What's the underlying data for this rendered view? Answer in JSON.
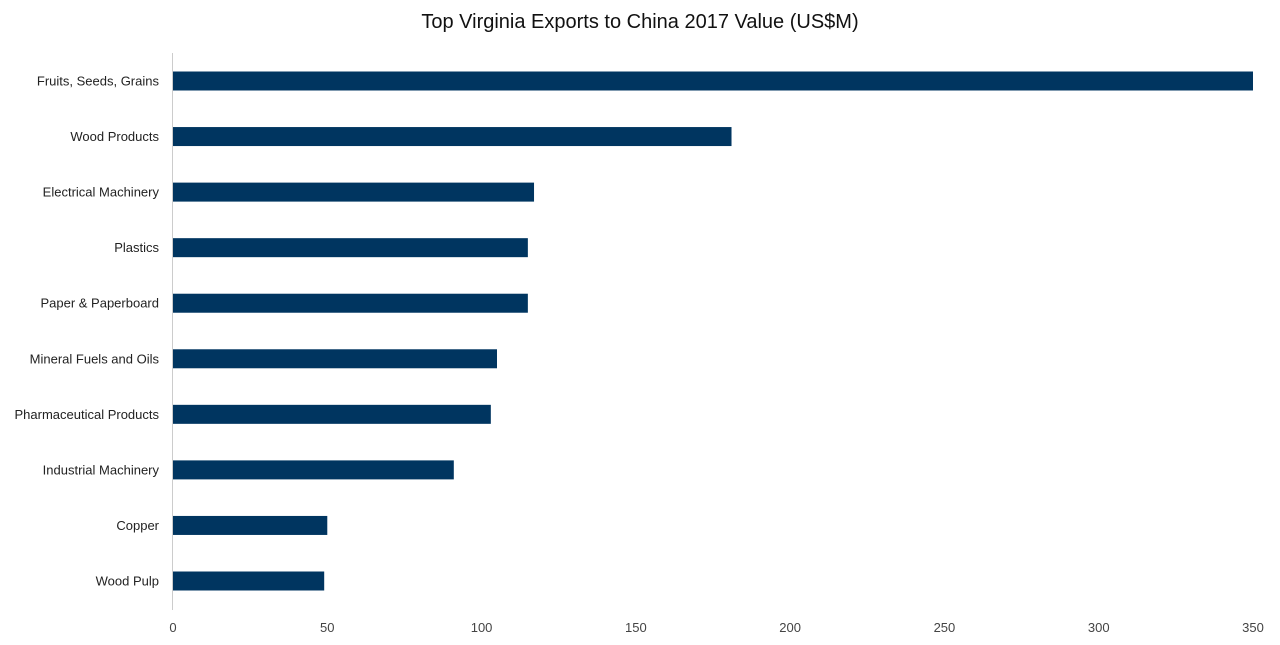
{
  "chart_data": {
    "type": "bar",
    "orientation": "horizontal",
    "title": "Top Virginia Exports to China 2017 Value (US$M)",
    "xlabel": "",
    "ylabel": "",
    "categories": [
      "Fruits, Seeds, Grains",
      "Wood Products",
      "Electrical Machinery",
      "Plastics",
      "Paper & Paperboard",
      "Mineral Fuels and Oils",
      "Pharmaceutical Products",
      "Industrial Machinery",
      "Copper",
      "Wood Pulp"
    ],
    "values": [
      350,
      181,
      117,
      115,
      115,
      105,
      103,
      91,
      50,
      49
    ],
    "xlim": [
      0,
      350
    ],
    "xticks": [
      "0",
      "50",
      "100",
      "150",
      "200",
      "250",
      "300",
      "350"
    ],
    "grid": false,
    "bar_color": "#003560"
  }
}
